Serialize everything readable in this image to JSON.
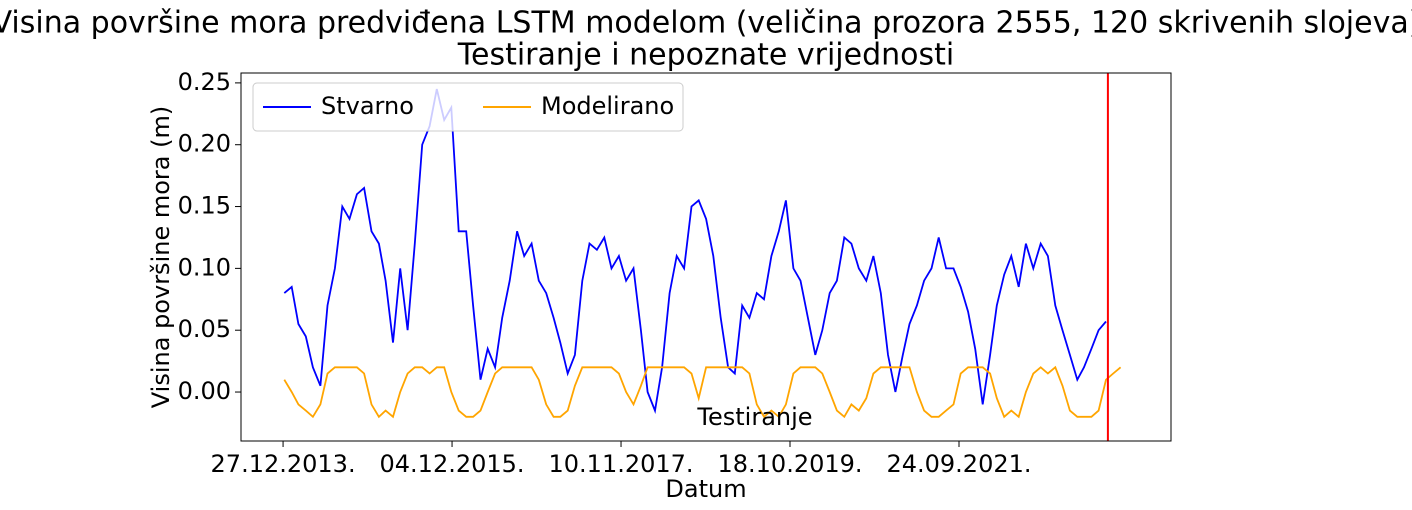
{
  "chart_data": {
    "type": "line",
    "title": "Visina površine mora predviđena LSTM modelom (veličina prozora 2555, 120 skrivenih slojeva)",
    "subtitle": "Testiranje i nepoznate vrijednosti",
    "x_label": "Datum",
    "y_label": "Visina površine mora (m)",
    "annotation": "Testiranje",
    "x": [
      "2014-01-01",
      "2014-02-01",
      "2014-03-01",
      "2014-04-01",
      "2014-05-01",
      "2014-06-01",
      "2014-07-01",
      "2014-08-01",
      "2014-09-01",
      "2014-10-01",
      "2014-11-01",
      "2014-12-01",
      "2015-01-01",
      "2015-02-01",
      "2015-03-01",
      "2015-04-01",
      "2015-05-01",
      "2015-06-01",
      "2015-07-01",
      "2015-08-01",
      "2015-09-01",
      "2015-10-01",
      "2015-11-01",
      "2015-12-01",
      "2016-01-01",
      "2016-02-01",
      "2016-03-01",
      "2016-04-01",
      "2016-05-01",
      "2016-06-01",
      "2016-07-01",
      "2016-08-01",
      "2016-09-01",
      "2016-10-01",
      "2016-11-01",
      "2016-12-01",
      "2017-01-01",
      "2017-02-01",
      "2017-03-01",
      "2017-04-01",
      "2017-05-01",
      "2017-06-01",
      "2017-07-01",
      "2017-08-01",
      "2017-09-01",
      "2017-10-01",
      "2017-11-01",
      "2017-12-01",
      "2018-01-01",
      "2018-02-01",
      "2018-03-01",
      "2018-04-01",
      "2018-05-01",
      "2018-06-01",
      "2018-07-01",
      "2018-08-01",
      "2018-09-01",
      "2018-10-01",
      "2018-11-01",
      "2018-12-01",
      "2019-01-01",
      "2019-02-01",
      "2019-03-01",
      "2019-04-01",
      "2019-05-01",
      "2019-06-01",
      "2019-07-01",
      "2019-08-01",
      "2019-09-01",
      "2019-10-01",
      "2019-11-01",
      "2019-12-01",
      "2020-01-01",
      "2020-02-01",
      "2020-03-01",
      "2020-04-01",
      "2020-05-01",
      "2020-06-01",
      "2020-07-01",
      "2020-08-01",
      "2020-09-01",
      "2020-10-01",
      "2020-11-01",
      "2020-12-01",
      "2021-01-01",
      "2021-02-01",
      "2021-03-01",
      "2021-04-01",
      "2021-05-01",
      "2021-06-01",
      "2021-07-01",
      "2021-08-01",
      "2021-09-01",
      "2021-10-01",
      "2021-11-01",
      "2021-12-01",
      "2022-01-01",
      "2022-02-01",
      "2022-03-01",
      "2022-04-01",
      "2022-05-01",
      "2022-06-01",
      "2022-07-01",
      "2022-08-01",
      "2022-09-01",
      "2022-10-01",
      "2022-11-01",
      "2022-12-01",
      "2023-01-01",
      "2023-02-01",
      "2023-03-01",
      "2023-04-01",
      "2023-05-01",
      "2023-06-01",
      "2023-07-01",
      "2023-08-01"
    ],
    "series": [
      {
        "name": "Stvarno",
        "color": "blue",
        "values": [
          0.08,
          0.085,
          0.055,
          0.045,
          0.02,
          0.005,
          0.07,
          0.1,
          0.15,
          0.14,
          0.16,
          0.165,
          0.13,
          0.12,
          0.09,
          0.04,
          0.1,
          0.05,
          0.12,
          0.2,
          0.215,
          0.245,
          0.22,
          0.23,
          0.13,
          0.13,
          0.07,
          0.01,
          0.035,
          0.02,
          0.06,
          0.09,
          0.13,
          0.11,
          0.12,
          0.09,
          0.08,
          0.06,
          0.04,
          0.015,
          0.03,
          0.09,
          0.12,
          0.115,
          0.125,
          0.1,
          0.11,
          0.09,
          0.1,
          0.05,
          0.0,
          -0.015,
          0.02,
          0.08,
          0.11,
          0.1,
          0.15,
          0.155,
          0.14,
          0.11,
          0.06,
          0.02,
          0.015,
          0.07,
          0.06,
          0.08,
          0.075,
          0.11,
          0.13,
          0.155,
          0.1,
          0.09,
          0.06,
          0.03,
          0.05,
          0.08,
          0.09,
          0.125,
          0.12,
          0.1,
          0.09,
          0.11,
          0.08,
          0.03,
          0.0,
          0.03,
          0.055,
          0.07,
          0.09,
          0.1,
          0.125,
          0.1,
          0.1,
          0.085,
          0.065,
          0.035,
          -0.01,
          0.03,
          0.07,
          0.095,
          0.11,
          0.085,
          0.12,
          0.1,
          0.12,
          0.11,
          0.07,
          0.05,
          0.03,
          0.01,
          0.02,
          0.035,
          0.05,
          0.057,
          null,
          null
        ]
      },
      {
        "name": "Modelirano",
        "color": "orange",
        "values": [
          0.01,
          0.0,
          -0.01,
          -0.015,
          -0.02,
          -0.01,
          0.015,
          0.02,
          0.02,
          0.02,
          0.02,
          0.015,
          -0.01,
          -0.02,
          -0.015,
          -0.02,
          0.0,
          0.015,
          0.02,
          0.02,
          0.015,
          0.02,
          0.02,
          0.0,
          -0.015,
          -0.02,
          -0.02,
          -0.015,
          0.0,
          0.015,
          0.02,
          0.02,
          0.02,
          0.02,
          0.02,
          0.01,
          -0.01,
          -0.02,
          -0.02,
          -0.015,
          0.005,
          0.02,
          0.02,
          0.02,
          0.02,
          0.02,
          0.015,
          0.0,
          -0.01,
          0.005,
          0.02,
          0.02,
          0.02,
          0.02,
          0.02,
          0.02,
          0.015,
          -0.005,
          0.02,
          0.02,
          0.02,
          0.02,
          0.02,
          0.02,
          0.015,
          -0.01,
          -0.02,
          -0.015,
          -0.02,
          -0.01,
          0.015,
          0.02,
          0.02,
          0.02,
          0.015,
          0.0,
          -0.015,
          -0.02,
          -0.01,
          -0.015,
          -0.005,
          0.015,
          0.02,
          0.02,
          0.02,
          0.02,
          0.02,
          0.0,
          -0.015,
          -0.02,
          -0.02,
          -0.015,
          -0.01,
          0.015,
          0.02,
          0.02,
          0.02,
          0.015,
          -0.005,
          -0.02,
          -0.015,
          -0.02,
          0.0,
          0.015,
          0.02,
          0.015,
          0.02,
          0.005,
          -0.015,
          -0.02,
          -0.02,
          -0.02,
          -0.015,
          0.01,
          0.015,
          0.02
        ]
      }
    ],
    "vline": {
      "x": "2023-06-09",
      "color": "red"
    },
    "xlim": [
      "2013-07-04",
      "2024-02-28"
    ],
    "xticks": [
      {
        "value": "2013-12-27",
        "label": "27.12.2013."
      },
      {
        "value": "2015-12-04",
        "label": "04.12.2015."
      },
      {
        "value": "2017-11-10",
        "label": "10.11.2017."
      },
      {
        "value": "2019-10-18",
        "label": "18.10.2019."
      },
      {
        "value": "2021-09-24",
        "label": "24.09.2021."
      }
    ],
    "ylim": [
      -0.0396,
      0.258
    ],
    "yticks": [
      {
        "value": 0,
        "label": "0.00"
      },
      0.05,
      {
        "value": 0.1,
        "label": "0.10"
      },
      0.15,
      {
        "value": 0.2,
        "label": "0.20"
      },
      0.25
    ],
    "legend": "upper left",
    "legend_columns": 2
  }
}
